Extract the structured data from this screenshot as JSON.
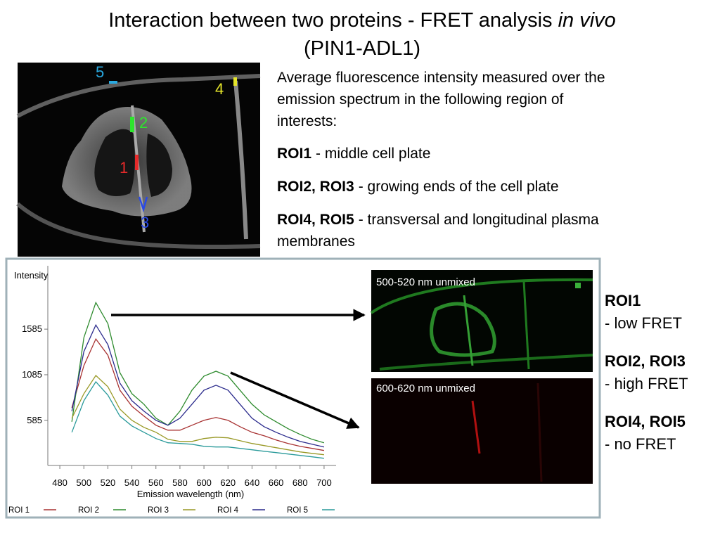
{
  "title": {
    "main": "Interaction between two proteins - FRET analysis",
    "italic": "in vivo",
    "sub": "(PIN1-ADL1)"
  },
  "image": {
    "roi_labels": [
      {
        "text": "5",
        "color": "#29a9e0"
      },
      {
        "text": "4",
        "color": "#e6e62a"
      },
      {
        "text": "2",
        "color": "#2ee62e"
      },
      {
        "text": "1",
        "color": "#e62a2a"
      },
      {
        "text": "3",
        "color": "#2a4ae6"
      }
    ]
  },
  "description": {
    "intro": [
      "Average fluorescence intensity measured over the",
      "emission spectrum in the following region of",
      "interests:"
    ],
    "items": [
      {
        "label": "ROI1",
        "text": [
          "- middle cell plate"
        ]
      },
      {
        "label": "ROI2, ROI3",
        "text": [
          "- growing ends of the cell plate"
        ]
      },
      {
        "label": "ROI4, ROI5",
        "text": [
          "- transversal and longitudinal plasma",
          "membranes"
        ]
      }
    ]
  },
  "panels": [
    "500-520 nm unmixed",
    "600-620 nm unmixed"
  ],
  "notes": [
    {
      "label": "ROI1",
      "text": "- low FRET"
    },
    {
      "label": "ROI2, ROI3",
      "text": "- high FRET"
    },
    {
      "label": "ROI4, ROI5",
      "text": "- no FRET"
    }
  ],
  "chart_data": {
    "type": "line",
    "y_label": "Intensity",
    "x_label": "Emission wavelength (nm)",
    "xlim": [
      470,
      710
    ],
    "xticks": [
      480,
      500,
      520,
      540,
      560,
      580,
      600,
      620,
      640,
      660,
      680,
      700
    ],
    "ylim": [
      90,
      2280
    ],
    "yticks": [
      585,
      1085,
      1585
    ],
    "x": [
      490,
      500,
      510,
      520,
      530,
      540,
      550,
      560,
      570,
      580,
      590,
      600,
      610,
      620,
      630,
      640,
      650,
      660,
      670,
      680,
      690,
      700
    ],
    "series": [
      {
        "name": "ROI 1",
        "color": "#a83232",
        "values": [
          723,
          1185,
          1477,
          1300,
          916,
          739,
          631,
          531,
          477,
          477,
          531,
          585,
          616,
          585,
          516,
          454,
          416,
          370,
          331,
          300,
          277,
          254
        ]
      },
      {
        "name": "ROI 2",
        "color": "#2e8b2e",
        "values": [
          570,
          1493,
          1877,
          1646,
          1108,
          877,
          762,
          608,
          531,
          685,
          916,
          1070,
          1123,
          1070,
          916,
          762,
          646,
          570,
          493,
          431,
          377,
          339
        ]
      },
      {
        "name": "ROI 3",
        "color": "#999926",
        "values": [
          608,
          877,
          1077,
          954,
          708,
          585,
          508,
          454,
          377,
          354,
          354,
          385,
          400,
          393,
          362,
          331,
          308,
          285,
          262,
          239,
          223,
          208
        ]
      },
      {
        "name": "ROI 4",
        "color": "#2a2a8c",
        "values": [
          685,
          1339,
          1631,
          1416,
          993,
          800,
          685,
          585,
          531,
          608,
          762,
          916,
          970,
          916,
          762,
          608,
          516,
          454,
          400,
          354,
          323,
          293
        ]
      },
      {
        "name": "ROI 5",
        "color": "#2a9a9a",
        "values": [
          454,
          800,
          1008,
          862,
          631,
          523,
          454,
          385,
          339,
          331,
          323,
          300,
          293,
          293,
          277,
          262,
          246,
          231,
          216,
          200,
          185,
          169
        ]
      }
    ]
  }
}
